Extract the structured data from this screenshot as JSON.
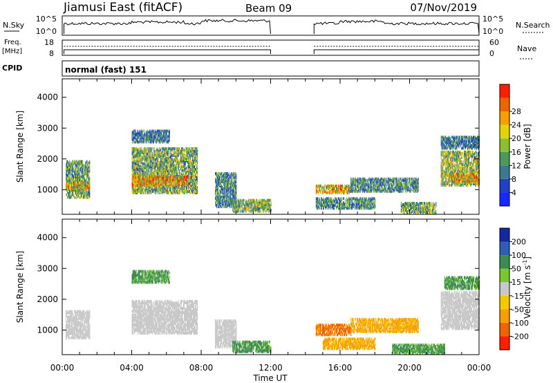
{
  "header": {
    "station": "Jiamusi East (fitACF)",
    "beam": "Beam 09",
    "date": "07/Nov/2019"
  },
  "panels": {
    "nsky": {
      "label": "N.Sky",
      "tick_top": "10^5",
      "tick_bottom": "10^0",
      "right_tick_top": "10^5",
      "right_tick_bottom": "10^0",
      "right_label": "N.Search"
    },
    "freq": {
      "label_line1": "Freq.",
      "label_line2": "[MHz]",
      "tick_top": "18",
      "tick_bottom": "8",
      "right_tick_top": "60",
      "right_tick_bottom": "0",
      "right_label": "Nave"
    },
    "cpid": {
      "label": "CPID",
      "value": "normal (fast) 151"
    }
  },
  "chart_data": [
    {
      "type": "heatmap",
      "name": "power",
      "ylabel": "Slant Range [km]",
      "xlabel": "",
      "y_ticks": [
        "1000",
        "2000",
        "3000",
        "4000"
      ],
      "ylim": [
        200,
        4600
      ],
      "colorbar": {
        "label": "Power [dB]",
        "ticks": [
          "4",
          "8",
          "12",
          "16",
          "20",
          "24",
          "28"
        ],
        "colors": [
          "#1428ff",
          "#2040c8",
          "#3c7890",
          "#4a9a5a",
          "#8cc032",
          "#e6d20a",
          "#f5a000",
          "#f06400",
          "#ff1e00"
        ]
      },
      "echo_regions": [
        {
          "t0": 0.2,
          "t1": 1.6,
          "r0": 700,
          "r1": 1900,
          "level": 12
        },
        {
          "t0": 0.2,
          "t1": 1.6,
          "r0": 950,
          "r1": 1200,
          "level": 20
        },
        {
          "t0": 4.0,
          "t1": 7.8,
          "r0": 850,
          "r1": 2300,
          "level": 14
        },
        {
          "t0": 4.0,
          "t1": 7.4,
          "r0": 1100,
          "r1": 1400,
          "level": 22
        },
        {
          "t0": 4.0,
          "t1": 6.2,
          "r0": 2500,
          "r1": 2900,
          "level": 8
        },
        {
          "t0": 8.8,
          "t1": 10.0,
          "r0": 400,
          "r1": 1500,
          "level": 10
        },
        {
          "t0": 9.8,
          "t1": 12.0,
          "r0": 250,
          "r1": 650,
          "level": 14
        },
        {
          "t0": 14.6,
          "t1": 16.6,
          "r0": 850,
          "r1": 1100,
          "level": 20
        },
        {
          "t0": 14.6,
          "t1": 18.0,
          "r0": 350,
          "r1": 700,
          "level": 10
        },
        {
          "t0": 16.6,
          "t1": 20.5,
          "r0": 900,
          "r1": 1350,
          "level": 10
        },
        {
          "t0": 19.5,
          "t1": 21.5,
          "r0": 200,
          "r1": 550,
          "level": 14
        },
        {
          "t0": 21.8,
          "t1": 24.0,
          "r0": 1100,
          "r1": 2200,
          "level": 16
        },
        {
          "t0": 22.5,
          "t1": 24.0,
          "r0": 1200,
          "r1": 1500,
          "level": 22
        },
        {
          "t0": 21.8,
          "t1": 24.0,
          "r0": 2300,
          "r1": 2700,
          "level": 8
        }
      ]
    },
    {
      "type": "heatmap",
      "name": "velocity",
      "ylabel": "Slant Range [km]",
      "xlabel": "Time UT",
      "x_ticks": [
        "00:00",
        "04:00",
        "08:00",
        "12:00",
        "16:00",
        "20:00",
        "00:00"
      ],
      "y_ticks": [
        "1000",
        "2000",
        "3000",
        "4000"
      ],
      "ylim": [
        200,
        4600
      ],
      "colorbar": {
        "label": "Velocity [m s-1]",
        "label_main": "Velocity [m s",
        "label_exp": "-1",
        "label_close": "]",
        "ticks": [
          "-200",
          "-100",
          "-50",
          "-15",
          "15",
          "50",
          "100",
          "200"
        ],
        "colors": [
          "#ff1e00",
          "#f06400",
          "#f5a000",
          "#f5c800",
          "#c8c8c8",
          "#78c832",
          "#3c8c50",
          "#2d5fb4",
          "#1428a0"
        ]
      },
      "echo_regions": [
        {
          "t0": 0.2,
          "t1": 1.6,
          "r0": 700,
          "r1": 1600,
          "level": 0
        },
        {
          "t0": 4.0,
          "t1": 7.8,
          "r0": 850,
          "r1": 1900,
          "level": 0
        },
        {
          "t0": 4.0,
          "t1": 6.2,
          "r0": 2500,
          "r1": 2900,
          "level": 40
        },
        {
          "t0": 8.8,
          "t1": 10.0,
          "r0": 400,
          "r1": 1300,
          "level": 0
        },
        {
          "t0": 9.8,
          "t1": 12.0,
          "r0": 250,
          "r1": 600,
          "level": 40
        },
        {
          "t0": 14.6,
          "t1": 16.6,
          "r0": 800,
          "r1": 1150,
          "level": -90
        },
        {
          "t0": 16.6,
          "t1": 20.5,
          "r0": 900,
          "r1": 1350,
          "level": -40
        },
        {
          "t0": 15.0,
          "t1": 18.0,
          "r0": 350,
          "r1": 700,
          "level": -40
        },
        {
          "t0": 19.0,
          "t1": 22.0,
          "r0": 200,
          "r1": 500,
          "level": 40
        },
        {
          "t0": 21.8,
          "t1": 24.0,
          "r0": 1000,
          "r1": 2200,
          "level": 0
        },
        {
          "t0": 22.0,
          "t1": 24.0,
          "r0": 2300,
          "r1": 2700,
          "level": 40
        }
      ]
    }
  ]
}
